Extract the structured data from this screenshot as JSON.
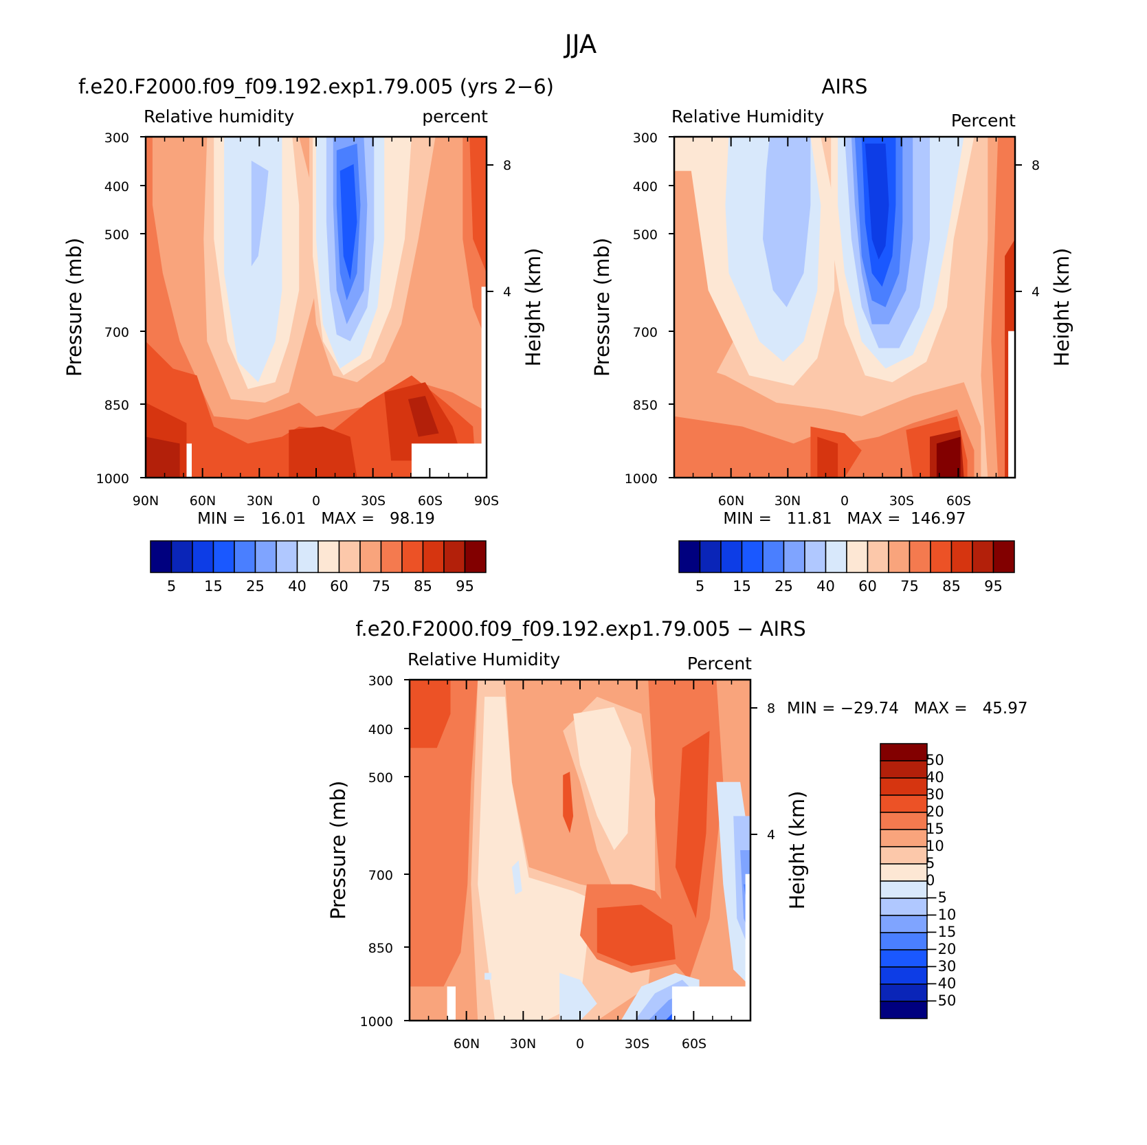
{
  "figure_title": "JJA",
  "colors": {
    "rh_levels": [
      "#00007f",
      "#0a25b8",
      "#0d3de6",
      "#1a58ff",
      "#4a7fff",
      "#7fa4ff",
      "#b0c8ff",
      "#d8e8fb",
      "#fde7d4",
      "#fcc8aa",
      "#f9a47c",
      "#f47a4f",
      "#ec5226",
      "#d63510",
      "#b3200a",
      "#820000"
    ],
    "diff_levels": [
      "#00007f",
      "#0a25b8",
      "#0d3de6",
      "#1a58ff",
      "#4a7fff",
      "#7fa4ff",
      "#b0c8ff",
      "#d8e8fb",
      "#fde7d4",
      "#fcc8aa",
      "#f9a47c",
      "#f47a4f",
      "#ec5226",
      "#d63510",
      "#b3200a",
      "#820000"
    ]
  },
  "chart_data": [
    {
      "type": "heatmap",
      "title": "f.e20.F2000.f09_f09.192.exp1.79.005 (yrs 2−6)",
      "left_label": "Relative humidity",
      "right_label": "percent",
      "ylabel": "Pressure (mb)",
      "y2label": "Height (km)",
      "yticks": [
        "300",
        "400",
        "500",
        "700",
        "850",
        "1000"
      ],
      "y2ticks": [
        "8",
        "4"
      ],
      "xticks": [
        "90N",
        "60N",
        "30N",
        "0",
        "30S",
        "60S",
        "90S"
      ],
      "min_max": "MIN =   16.01   MAX =   98.19",
      "colorbar_labels": [
        "5",
        "15",
        "25",
        "40",
        "60",
        "75",
        "85",
        "95"
      ],
      "min": 16.01,
      "max": 98.19
    },
    {
      "type": "heatmap",
      "title": "AIRS",
      "left_label": "Relative Humidity",
      "right_label": "Percent",
      "ylabel": "Pressure (mb)",
      "y2label": "Height (km)",
      "yticks": [
        "300",
        "400",
        "500",
        "700",
        "850",
        "1000"
      ],
      "y2ticks": [
        "8",
        "4"
      ],
      "xticks": [
        "60N",
        "30N",
        "0",
        "30S",
        "60S"
      ],
      "min_max": "MIN =   11.81   MAX =  146.97",
      "colorbar_labels": [
        "5",
        "15",
        "25",
        "40",
        "60",
        "75",
        "85",
        "95"
      ],
      "min": 11.81,
      "max": 146.97
    },
    {
      "type": "heatmap",
      "title": "f.e20.F2000.f09_f09.192.exp1.79.005 − AIRS",
      "left_label": "Relative Humidity",
      "right_label": "Percent",
      "ylabel": "Pressure (mb)",
      "y2label": "Height (km)",
      "yticks": [
        "300",
        "400",
        "500",
        "700",
        "850",
        "1000"
      ],
      "y2ticks": [
        "8",
        "4"
      ],
      "xticks": [
        "60N",
        "30N",
        "0",
        "30S",
        "60S"
      ],
      "min_max": "MIN = −29.74   MAX =   45.97",
      "colorbar_labels": [
        "50",
        "40",
        "30",
        "20",
        "15",
        "10",
        "5",
        "0",
        "−5",
        "−10",
        "−15",
        "−20",
        "−30",
        "−40",
        "−50"
      ],
      "min": -29.74,
      "max": 45.97
    }
  ]
}
